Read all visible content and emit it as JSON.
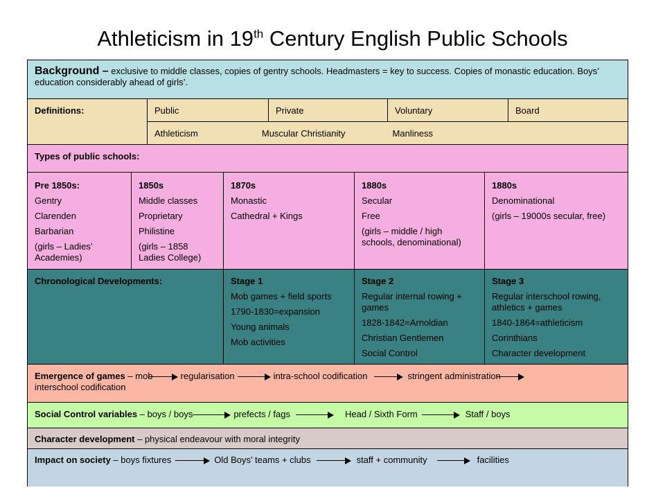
{
  "title": {
    "main": "Athleticism in 19",
    "sup": "th",
    "rest": " Century English Public Schools"
  },
  "background": {
    "label": "Background –",
    "text": " exclusive to middle classes, copies of gentry schools. Headmasters = key to success. Copies of monastic education. Boys’ education considerably ahead of girls’."
  },
  "definitions": {
    "label": "Definitions:",
    "terms": [
      "Public",
      "Private",
      "Voluntary",
      "Board"
    ],
    "terms2": [
      "Athleticism",
      "Muscular Christianity",
      "Manliness"
    ]
  },
  "types_label": "Types of public schools:",
  "types": [
    {
      "heading": "Pre 1850s:",
      "items": [
        "Gentry",
        "Clarenden",
        "Barbarian",
        "(girls – Ladies’ Academies)"
      ]
    },
    {
      "heading": "1850s",
      "items": [
        "Middle classes",
        "Proprietary",
        "Philistine",
        "(girls – 1858 Ladies College)"
      ]
    },
    {
      "heading": "1870s",
      "items": [
        "Monastic",
        "Cathedral + Kings"
      ]
    },
    {
      "heading": "1880s",
      "items": [
        "Secular",
        "Free",
        "(girls – middle / high schools, denominational)"
      ]
    },
    {
      "heading": "1880s",
      "items": [
        "Denominational",
        "(girls – 19000s secular, free)"
      ]
    }
  ],
  "chronological": {
    "label": "Chronological Developments:",
    "stages": [
      {
        "heading": "Stage 1",
        "items": [
          "Mob games + field sports",
          "1790-1830=expansion",
          "Young animals",
          "Mob activities"
        ]
      },
      {
        "heading": "Stage 2",
        "items": [
          "Regular internal rowing + games",
          "1828-1842=Arnoldian",
          "Christian Gentlemen",
          "Social Control"
        ]
      },
      {
        "heading": "Stage 3",
        "items": [
          "Regular interschool rowing, athletics + games",
          "1840-1864=athleticism",
          "Corinthians",
          "Character development"
        ]
      }
    ]
  },
  "emergence": {
    "label": "Emergence of games",
    "dash": " – mob",
    "steps": [
      "regularisation",
      "intra-school codification",
      "stringent administration"
    ],
    "last": "interschool codification"
  },
  "social_control": {
    "label": "Social Control variables",
    "dash": " – boys / boys",
    "steps": [
      "prefects / fags",
      "Head / Sixth Form",
      "Staff / boys"
    ]
  },
  "character": {
    "label": "Character development",
    "text": " – physical endeavour with moral integrity"
  },
  "impact": {
    "label": "Impact on society",
    "dash": " – boys fixtures",
    "steps": [
      "Old Boys’ teams + clubs",
      "staff + community",
      "facilities"
    ]
  }
}
